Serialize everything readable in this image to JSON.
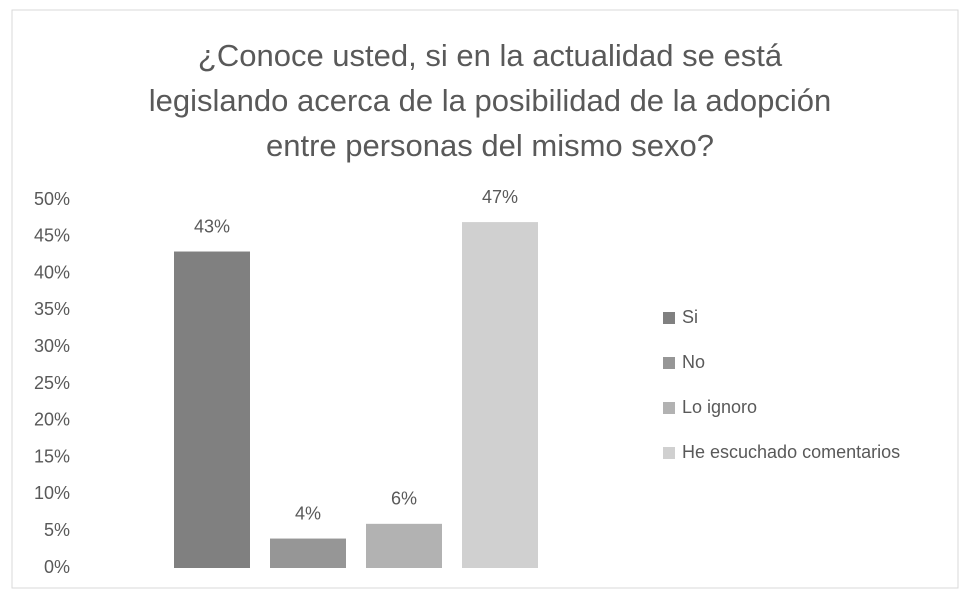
{
  "chart_data": {
    "type": "bar",
    "title": [
      "¿Conoce usted, si en la actualidad se está",
      "legislando acerca de la posibilidad de la adopción",
      "entre personas del mismo sexo?"
    ],
    "categories": [
      null
    ],
    "series": [
      {
        "name": "Si",
        "color": "#808080",
        "values": [
          43
        ],
        "value_labels": [
          "43%"
        ]
      },
      {
        "name": "No",
        "color": "#969696",
        "values": [
          4
        ],
        "value_labels": [
          "4%"
        ]
      },
      {
        "name": "Lo ignoro",
        "color": "#b2b2b2",
        "values": [
          6
        ],
        "value_labels": [
          "6%"
        ]
      },
      {
        "name": "He escuchado comentarios",
        "color": "#d0d0d0",
        "values": [
          47
        ],
        "value_labels": [
          "47%"
        ]
      }
    ],
    "ylim": [
      0,
      50
    ],
    "yticks": [
      {
        "value": 0,
        "label": "0%"
      },
      {
        "value": 5,
        "label": "5%"
      },
      {
        "value": 10,
        "label": "10%"
      },
      {
        "value": 15,
        "label": "15%"
      },
      {
        "value": 20,
        "label": "20%"
      },
      {
        "value": 25,
        "label": "25%"
      },
      {
        "value": 30,
        "label": "30%"
      },
      {
        "value": 35,
        "label": "35%"
      },
      {
        "value": 40,
        "label": "40%"
      },
      {
        "value": 45,
        "label": "45%"
      },
      {
        "value": 50,
        "label": "50%"
      }
    ],
    "grid": false,
    "legend": "right"
  }
}
